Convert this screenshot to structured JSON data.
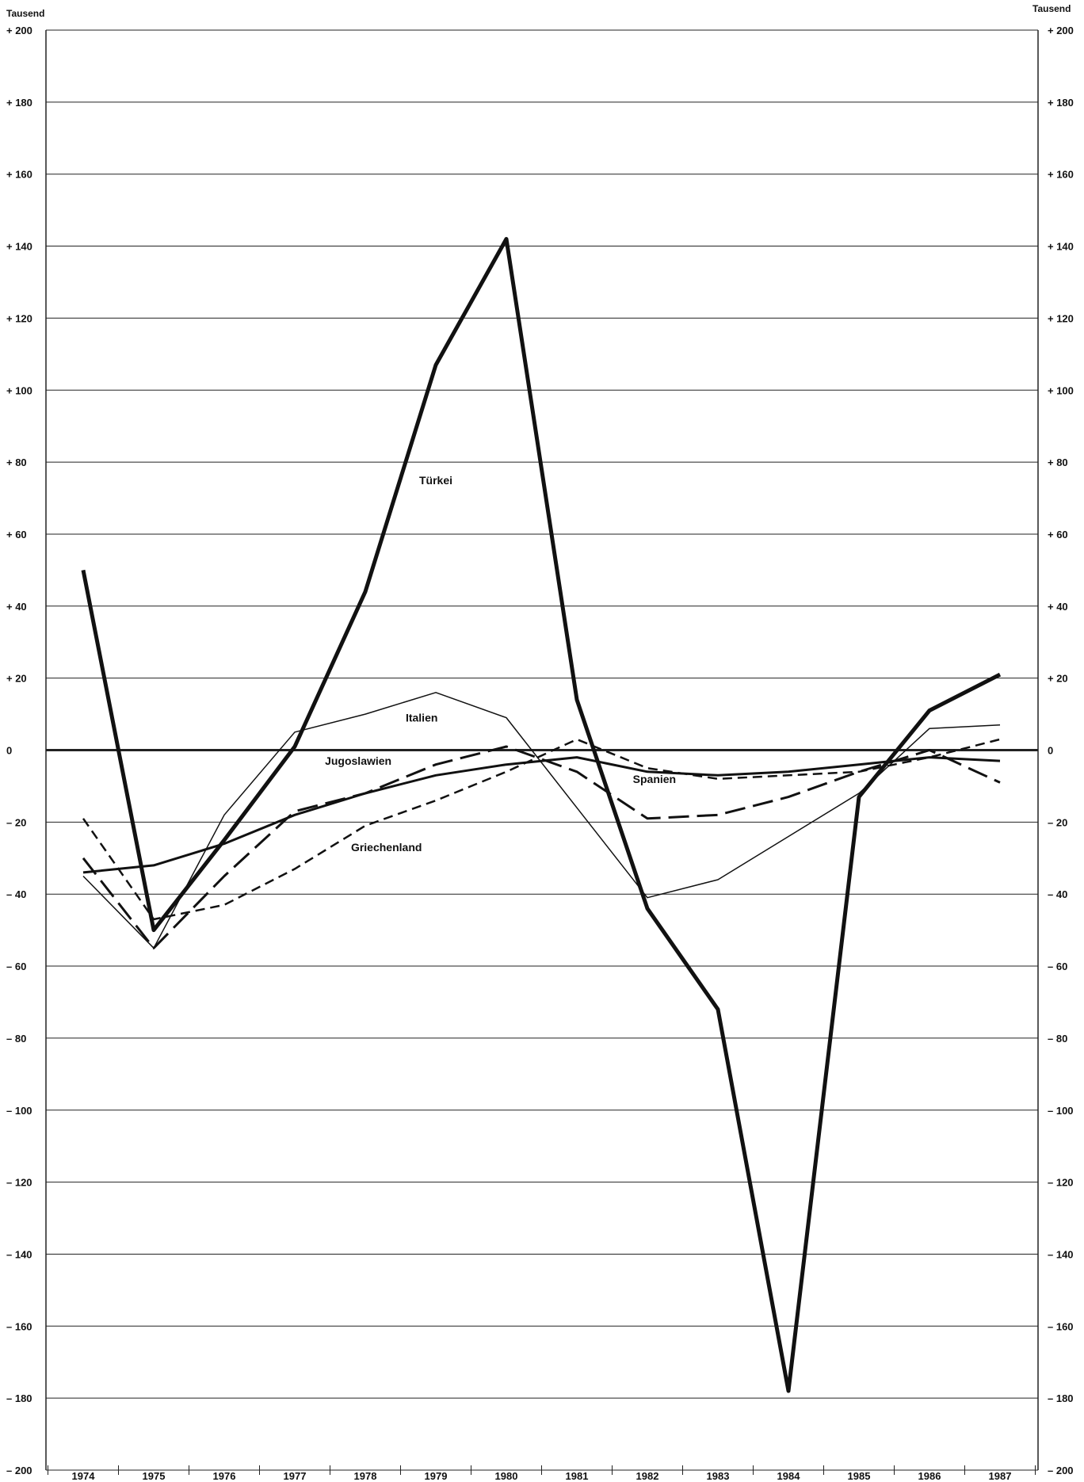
{
  "chart_data": {
    "type": "line",
    "unit_left": "Tausend",
    "unit_right": "Tausend",
    "x": [
      1974,
      1975,
      1976,
      1977,
      1978,
      1979,
      1980,
      1981,
      1982,
      1983,
      1984,
      1985,
      1986,
      1987
    ],
    "xticks": [
      "1974",
      "1975",
      "1976",
      "1977",
      "1978",
      "1979",
      "1980",
      "1981",
      "1982",
      "1983",
      "1984",
      "1985",
      "1986",
      "1987"
    ],
    "ylim": [
      -200,
      200
    ],
    "yticks": [
      200,
      180,
      160,
      140,
      120,
      100,
      80,
      60,
      40,
      20,
      0,
      -20,
      -40,
      -60,
      -80,
      -100,
      -120,
      -140,
      -160,
      -180,
      -200
    ],
    "ytick_labels": [
      "+ 200",
      "+ 180",
      "+ 160",
      "+ 140",
      "+ 120",
      "+ 100",
      "+ 80",
      "+ 60",
      "+ 40",
      "+ 20",
      "0",
      "– 20",
      "– 40",
      "– 60",
      "– 80",
      "– 100",
      "– 120",
      "– 140",
      "– 160",
      "– 180",
      "– 200"
    ],
    "grid": true,
    "series": [
      {
        "name": "Türkei",
        "style": "thick-solid",
        "values": [
          50,
          -50,
          -25,
          1,
          44,
          107,
          142,
          14,
          -44,
          -72,
          -178,
          -13,
          11,
          21
        ]
      },
      {
        "name": "Italien",
        "style": "thin-solid",
        "values": [
          -35,
          -55,
          -18,
          5,
          10,
          16,
          9,
          -16,
          -41,
          -36,
          -24,
          -12,
          6,
          7
        ]
      },
      {
        "name": "Jugoslawien",
        "style": "long-dash",
        "values": [
          -30,
          -55,
          -35,
          -17,
          -12,
          -4,
          1,
          -6,
          -19,
          -18,
          -13,
          -6,
          0,
          -9
        ]
      },
      {
        "name": "Spanien",
        "style": "medium-solid",
        "values": [
          -34,
          -32,
          -26,
          -18,
          -12,
          -7,
          -4,
          -2,
          -6,
          -7,
          -6,
          -4,
          -2,
          -3
        ]
      },
      {
        "name": "Griechenland",
        "style": "short-dash",
        "values": [
          -19,
          -47,
          -43,
          -33,
          -21,
          -14,
          -6,
          3,
          -5,
          -8,
          -7,
          -6,
          -2,
          3
        ]
      }
    ],
    "annotations": [
      {
        "text": "Türkei",
        "x": 1979,
        "y": 75
      },
      {
        "text": "Italien",
        "x": 1978.8,
        "y": 9
      },
      {
        "text": "Jugoslawien",
        "x": 1977.9,
        "y": -3
      },
      {
        "text": "Spanien",
        "x": 1982.1,
        "y": -8
      },
      {
        "text": "Griechenland",
        "x": 1978.3,
        "y": -27
      }
    ]
  }
}
